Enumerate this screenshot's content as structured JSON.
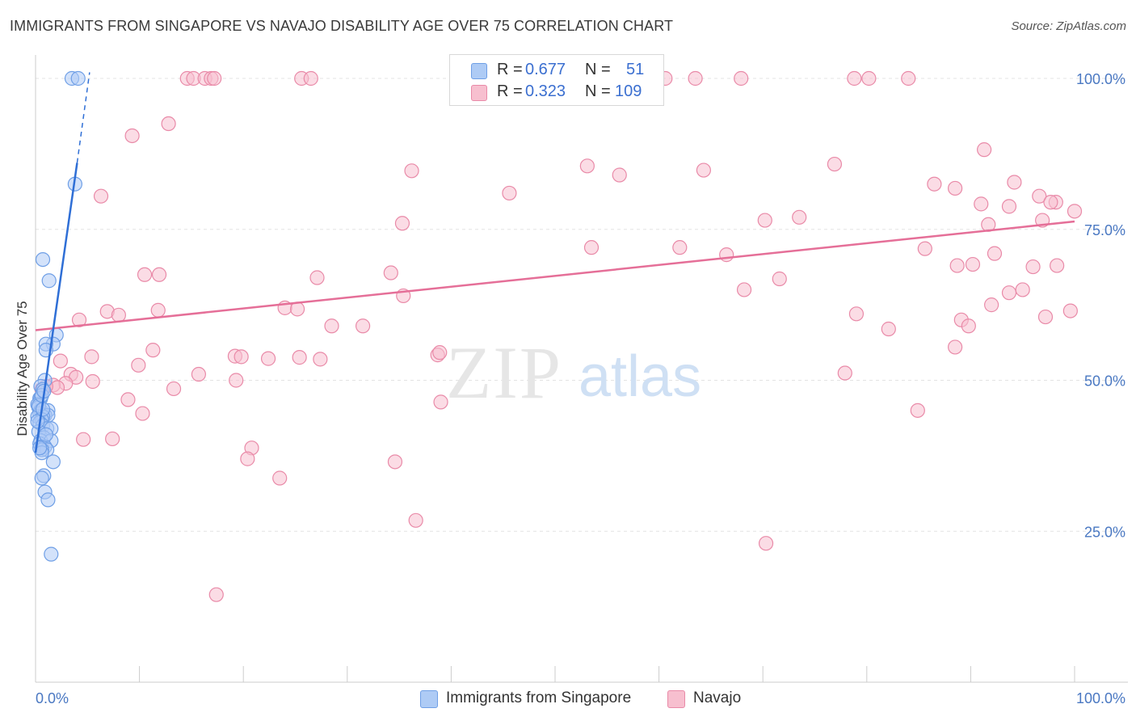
{
  "header": {
    "title": "IMMIGRANTS FROM SINGAPORE VS NAVAJO DISABILITY AGE OVER 75 CORRELATION CHART",
    "source": "Source: ZipAtlas.com"
  },
  "watermark": {
    "zip": "ZIP",
    "atlas": "atlas"
  },
  "legend": {
    "rows": [
      {
        "r_label": "R =",
        "r_value": "0.677",
        "n_label": "N =",
        "n_value": "51",
        "color": "#aecbf5",
        "border": "#6f9fe6"
      },
      {
        "r_label": "R =",
        "r_value": "0.323",
        "n_label": "N =",
        "n_value": "109",
        "color": "#f7bfcf",
        "border": "#e98aa8"
      }
    ]
  },
  "bottom_legend": {
    "items": [
      {
        "label": "Immigrants from Singapore",
        "color": "#aecbf5",
        "border": "#6f9fe6"
      },
      {
        "label": "Navajo",
        "color": "#f7bfcf",
        "border": "#e98aa8"
      }
    ]
  },
  "chart_data": {
    "type": "scatter",
    "title": "IMMIGRANTS FROM SINGAPORE VS NAVAJO DISABILITY AGE OVER 75 CORRELATION CHART",
    "xlabel": "",
    "ylabel": "Disability Age Over 75",
    "xlim": [
      0,
      100
    ],
    "ylim": [
      0,
      102
    ],
    "x_tick_labels": [
      "0.0%",
      "100.0%"
    ],
    "y_ticks": [
      25,
      50,
      75,
      100
    ],
    "y_tick_labels": [
      "25.0%",
      "50.0%",
      "75.0%",
      "100.0%"
    ],
    "grid": true,
    "legend_position": "top-center",
    "series": [
      {
        "name": "Immigrants from Singapore",
        "color": "#6f9fe6",
        "fill": "#aecbf5",
        "line_color": "#2f6fd6",
        "trend": {
          "x0": 0,
          "y0": 38,
          "x1": 4.0,
          "y1": 86,
          "dash_x1": 5.2,
          "dash_y1": 101
        },
        "points": [
          [
            3.5,
            100
          ],
          [
            4.1,
            100
          ],
          [
            3.8,
            82.5
          ],
          [
            0.7,
            70.0
          ],
          [
            1.3,
            66.5
          ],
          [
            2.0,
            57.5
          ],
          [
            1.7,
            56.0
          ],
          [
            1.0,
            56.0
          ],
          [
            1.0,
            55.0
          ],
          [
            0.9,
            50.0
          ],
          [
            0.5,
            49.0
          ],
          [
            0.7,
            48.5
          ],
          [
            0.4,
            47.0
          ],
          [
            0.5,
            47.0
          ],
          [
            0.2,
            46.0
          ],
          [
            0.3,
            45.5
          ],
          [
            0.5,
            45.0
          ],
          [
            1.2,
            45.0
          ],
          [
            0.4,
            44.5
          ],
          [
            0.9,
            44.2
          ],
          [
            1.2,
            44.2
          ],
          [
            0.2,
            44.0
          ],
          [
            0.7,
            44.0
          ],
          [
            0.6,
            43.5
          ],
          [
            0.4,
            43.0
          ],
          [
            0.7,
            42.5
          ],
          [
            1.1,
            42.0
          ],
          [
            1.5,
            42.0
          ],
          [
            0.3,
            41.5
          ],
          [
            0.8,
            40.5
          ],
          [
            0.5,
            40.0
          ],
          [
            1.5,
            40.0
          ],
          [
            0.4,
            39.5
          ],
          [
            0.6,
            39.0
          ],
          [
            0.9,
            39.0
          ],
          [
            1.1,
            38.5
          ],
          [
            0.6,
            38.5
          ],
          [
            0.6,
            38.0
          ],
          [
            1.7,
            36.5
          ],
          [
            0.8,
            34.2
          ],
          [
            0.6,
            33.8
          ],
          [
            0.9,
            31.5
          ],
          [
            1.2,
            30.2
          ],
          [
            1.5,
            21.2
          ],
          [
            0.3,
            45.8
          ],
          [
            0.2,
            43.2
          ],
          [
            0.6,
            47.5
          ],
          [
            0.8,
            48.2
          ],
          [
            1.0,
            41.0
          ],
          [
            0.4,
            38.8
          ],
          [
            0.7,
            45.2
          ]
        ]
      },
      {
        "name": "Navajo",
        "color": "#e98aa8",
        "fill": "#f7bfcf",
        "line_color": "#e56f98",
        "trend": {
          "x0": 0,
          "y0": 58.3,
          "x1": 100,
          "y1": 76.3
        },
        "points": [
          [
            14.6,
            100
          ],
          [
            15.2,
            100
          ],
          [
            16.3,
            100
          ],
          [
            16.9,
            100
          ],
          [
            17.2,
            100
          ],
          [
            25.6,
            100
          ],
          [
            26.5,
            100
          ],
          [
            40.8,
            100
          ],
          [
            42.8,
            100
          ],
          [
            60.6,
            100
          ],
          [
            63.5,
            100
          ],
          [
            67.9,
            100
          ],
          [
            78.8,
            100
          ],
          [
            80.2,
            100
          ],
          [
            84.0,
            100
          ],
          [
            12.8,
            92.5
          ],
          [
            9.3,
            90.5
          ],
          [
            91.3,
            88.2
          ],
          [
            53.1,
            85.5
          ],
          [
            64.3,
            84.8
          ],
          [
            76.9,
            85.8
          ],
          [
            36.2,
            84.7
          ],
          [
            56.2,
            84.0
          ],
          [
            6.3,
            80.5
          ],
          [
            45.6,
            81.0
          ],
          [
            86.5,
            82.5
          ],
          [
            88.5,
            81.8
          ],
          [
            94.2,
            82.8
          ],
          [
            96.6,
            80.5
          ],
          [
            98.2,
            79.5
          ],
          [
            91.0,
            79.2
          ],
          [
            93.7,
            78.8
          ],
          [
            97.7,
            79.5
          ],
          [
            100.0,
            78.0
          ],
          [
            70.2,
            76.5
          ],
          [
            73.5,
            77.0
          ],
          [
            35.3,
            76.0
          ],
          [
            91.7,
            75.8
          ],
          [
            96.9,
            76.5
          ],
          [
            53.5,
            72.0
          ],
          [
            62.0,
            72.0
          ],
          [
            85.6,
            71.8
          ],
          [
            92.3,
            71.0
          ],
          [
            66.5,
            70.8
          ],
          [
            88.7,
            69.0
          ],
          [
            90.2,
            69.2
          ],
          [
            96.0,
            68.8
          ],
          [
            98.3,
            69.0
          ],
          [
            10.5,
            67.5
          ],
          [
            11.9,
            67.5
          ],
          [
            27.1,
            67.0
          ],
          [
            34.2,
            67.8
          ],
          [
            71.6,
            66.8
          ],
          [
            68.2,
            65.0
          ],
          [
            93.7,
            64.5
          ],
          [
            95.0,
            65.0
          ],
          [
            35.4,
            64.0
          ],
          [
            24.0,
            62.0
          ],
          [
            25.2,
            61.8
          ],
          [
            11.8,
            61.6
          ],
          [
            6.9,
            61.4
          ],
          [
            8.0,
            60.8
          ],
          [
            79.0,
            61.0
          ],
          [
            92.0,
            62.5
          ],
          [
            97.2,
            60.5
          ],
          [
            99.6,
            61.5
          ],
          [
            4.2,
            60.0
          ],
          [
            89.1,
            60.0
          ],
          [
            89.8,
            59.0
          ],
          [
            82.1,
            58.5
          ],
          [
            28.5,
            59.0
          ],
          [
            31.5,
            59.0
          ],
          [
            38.7,
            54.2
          ],
          [
            38.9,
            54.6
          ],
          [
            88.5,
            55.5
          ],
          [
            11.3,
            55.0
          ],
          [
            5.4,
            53.9
          ],
          [
            19.2,
            54.0
          ],
          [
            19.8,
            53.9
          ],
          [
            22.4,
            53.6
          ],
          [
            25.4,
            53.8
          ],
          [
            27.4,
            53.5
          ],
          [
            2.4,
            53.2
          ],
          [
            9.9,
            52.5
          ],
          [
            77.9,
            51.2
          ],
          [
            15.7,
            51.0
          ],
          [
            3.4,
            51.0
          ],
          [
            3.9,
            50.5
          ],
          [
            19.3,
            50.0
          ],
          [
            2.9,
            49.5
          ],
          [
            5.5,
            49.8
          ],
          [
            1.7,
            49.2
          ],
          [
            2.1,
            48.8
          ],
          [
            1.0,
            49.0
          ],
          [
            0.6,
            48.5
          ],
          [
            13.3,
            48.6
          ],
          [
            8.9,
            46.8
          ],
          [
            39.0,
            46.4
          ],
          [
            84.9,
            45.0
          ],
          [
            10.3,
            44.5
          ],
          [
            4.6,
            40.2
          ],
          [
            7.4,
            40.3
          ],
          [
            20.8,
            38.8
          ],
          [
            20.4,
            37.0
          ],
          [
            34.6,
            36.5
          ],
          [
            23.5,
            33.8
          ],
          [
            36.6,
            26.8
          ],
          [
            70.3,
            23.0
          ],
          [
            17.4,
            14.5
          ]
        ]
      }
    ]
  }
}
